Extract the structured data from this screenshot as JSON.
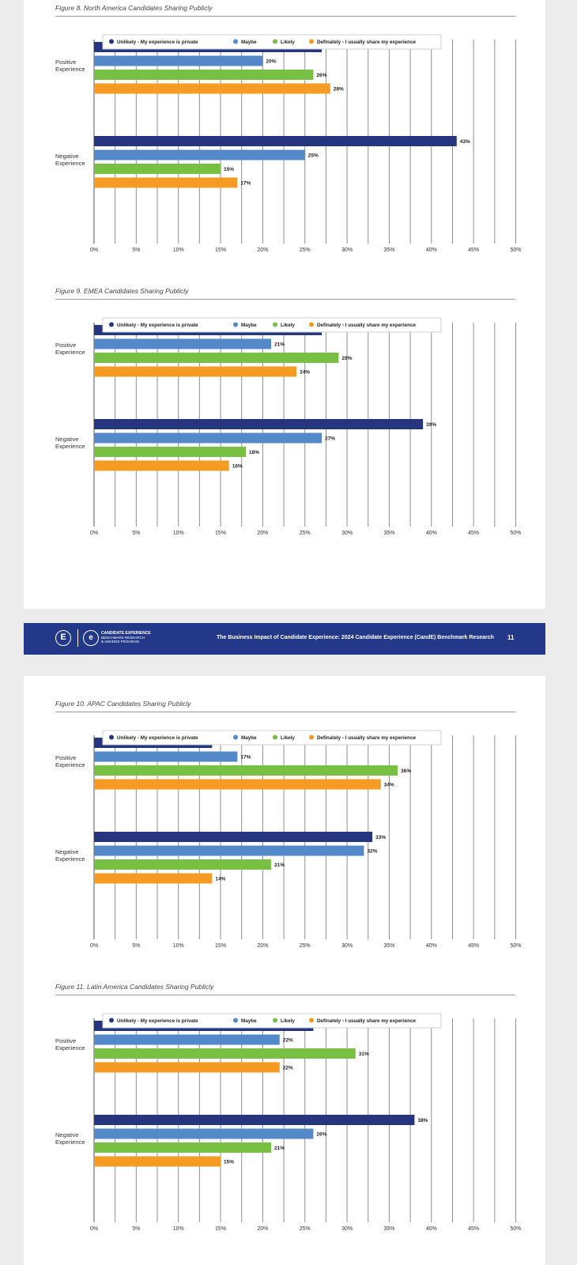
{
  "chart_data": [
    {
      "type": "bar",
      "orientation": "horizontal",
      "title": "Figure 8. North America Candidates Sharing Publicly",
      "categories": [
        "Positive Experience",
        "Negative Experience"
      ],
      "series": [
        {
          "name": "Unlikely - My experience is private",
          "values": [
            27,
            43
          ],
          "color": "#25367f"
        },
        {
          "name": "Maybe",
          "values": [
            20,
            25
          ],
          "color": "#5389c9"
        },
        {
          "name": "Likely",
          "values": [
            26,
            15
          ],
          "color": "#78c043"
        },
        {
          "name": "Definately - I usually share my experience",
          "values": [
            28,
            17
          ],
          "color": "#f59a22"
        }
      ],
      "xlim": [
        0,
        50
      ],
      "xticks": [
        "0%",
        "5%",
        "10%",
        "15%",
        "20%",
        "25%",
        "30%",
        "35%",
        "40%",
        "45%",
        "50%"
      ],
      "legend": "top",
      "grid": true
    },
    {
      "type": "bar",
      "orientation": "horizontal",
      "title": "Figure 9. EMEA Candidates Sharing Publicly",
      "categories": [
        "Positive Experience",
        "Negative Experience"
      ],
      "series": [
        {
          "name": "Unlikely - My experience is private",
          "values": [
            27,
            39
          ],
          "color": "#25367f"
        },
        {
          "name": "Maybe",
          "values": [
            21,
            27
          ],
          "color": "#5389c9"
        },
        {
          "name": "Likely",
          "values": [
            29,
            18
          ],
          "color": "#78c043"
        },
        {
          "name": "Definately - I usually share my experience",
          "values": [
            24,
            16
          ],
          "color": "#f59a22"
        }
      ],
      "xlim": [
        0,
        50
      ],
      "xticks": [
        "0%",
        "5%",
        "10%",
        "15%",
        "20%",
        "25%",
        "30%",
        "35%",
        "40%",
        "45%",
        "50%"
      ],
      "legend": "top",
      "grid": true
    },
    {
      "type": "bar",
      "orientation": "horizontal",
      "title": "Figure 10. APAC Candidates Sharing Publicly",
      "categories": [
        "Positive Experience",
        "Negative Experience"
      ],
      "series": [
        {
          "name": "Unlikely - My experience is private",
          "values": [
            14,
            33
          ],
          "color": "#25367f"
        },
        {
          "name": "Maybe",
          "values": [
            17,
            32
          ],
          "color": "#5389c9"
        },
        {
          "name": "Likely",
          "values": [
            36,
            21
          ],
          "color": "#78c043"
        },
        {
          "name": "Definately - I usually share my experience",
          "values": [
            34,
            14
          ],
          "color": "#f59a22"
        }
      ],
      "xlim": [
        0,
        50
      ],
      "xticks": [
        "0%",
        "5%",
        "10%",
        "15%",
        "20%",
        "25%",
        "30%",
        "35%",
        "40%",
        "45%",
        "50%"
      ],
      "legend": "top",
      "grid": true
    },
    {
      "type": "bar",
      "orientation": "horizontal",
      "title": "Figure 11. Latin America Candidates Sharing Publicly",
      "categories": [
        "Positive Experience",
        "Negative Experience"
      ],
      "series": [
        {
          "name": "Unlikely - My experience is private",
          "values": [
            26,
            38
          ],
          "color": "#25367f"
        },
        {
          "name": "Maybe",
          "values": [
            22,
            26
          ],
          "color": "#5389c9"
        },
        {
          "name": "Likely",
          "values": [
            31,
            21
          ],
          "color": "#78c043"
        },
        {
          "name": "Definately - I usually share my experience",
          "values": [
            22,
            15
          ],
          "color": "#f59a22"
        }
      ],
      "xlim": [
        0,
        50
      ],
      "xticks": [
        "0%",
        "5%",
        "10%",
        "15%",
        "20%",
        "25%",
        "30%",
        "35%",
        "40%",
        "45%",
        "50%"
      ],
      "legend": "top",
      "grid": true
    }
  ],
  "footer": {
    "text": "The Business Impact of Candidate Experience: 2024 Candidate Experience (CandE) Benchmark Research",
    "page_number": "11",
    "logo_letter": "E",
    "brand_line1": "CANDIDATE EXPERIENCE",
    "brand_line2": "BENCHMARK RESEARCH",
    "brand_line3": "& AWARDS PROGRAM"
  }
}
